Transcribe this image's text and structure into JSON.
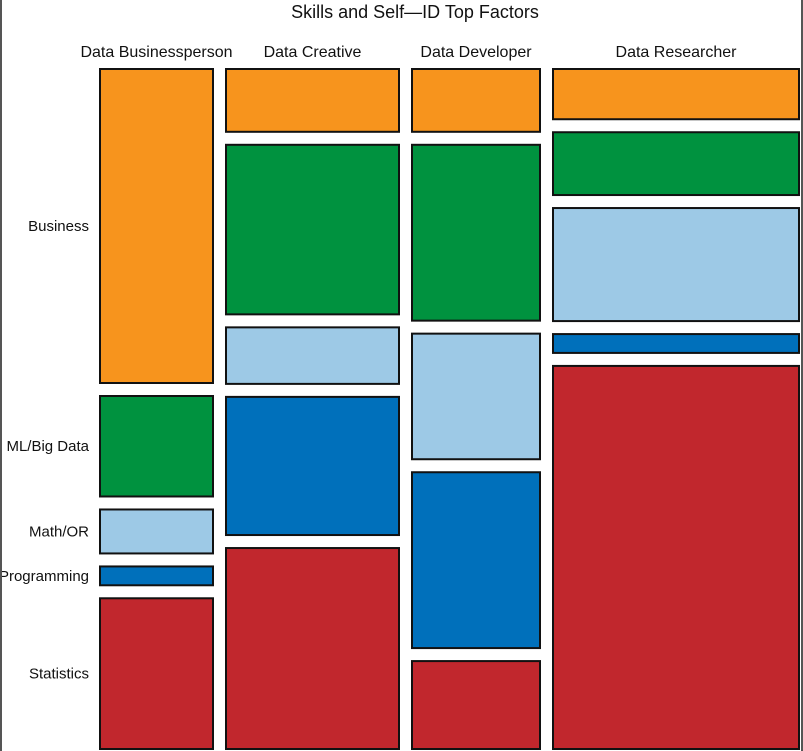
{
  "chart_data": {
    "type": "mosaic",
    "title": "Skills and Self—ID Top Factors",
    "categories": [
      "Data Businessperson",
      "Data Creative",
      "Data Developer",
      "Data Researcher"
    ],
    "column_widths": [
      0.1577,
      0.2391,
      0.1778,
      0.341
    ],
    "segments": [
      "Business",
      "ML/Big Data",
      "Math/OR",
      "Programming",
      "Statistics"
    ],
    "segment_colors": {
      "Business": "#f7941d",
      "ML/Big Data": "#00923f",
      "Math/OR": "#9dc9e6",
      "Programming": "#0070bb",
      "Statistics": "#c1272d"
    },
    "series": [
      {
        "name": "Business",
        "values": [
          0.5,
          0.1,
          0.1,
          0.08
        ]
      },
      {
        "name": "ML/Big Data",
        "values": [
          0.16,
          0.27,
          0.28,
          0.1
        ]
      },
      {
        "name": "Math/OR",
        "values": [
          0.07,
          0.09,
          0.2,
          0.18
        ]
      },
      {
        "name": "Programming",
        "values": [
          0.03,
          0.22,
          0.28,
          0.03
        ]
      },
      {
        "name": "Statistics",
        "values": [
          0.24,
          0.32,
          0.14,
          0.61
        ]
      }
    ],
    "ylabel_rows": [
      "Business",
      "ML/Big Data",
      "Math/OR",
      "Programming",
      "Statistics"
    ],
    "legend": "none"
  }
}
